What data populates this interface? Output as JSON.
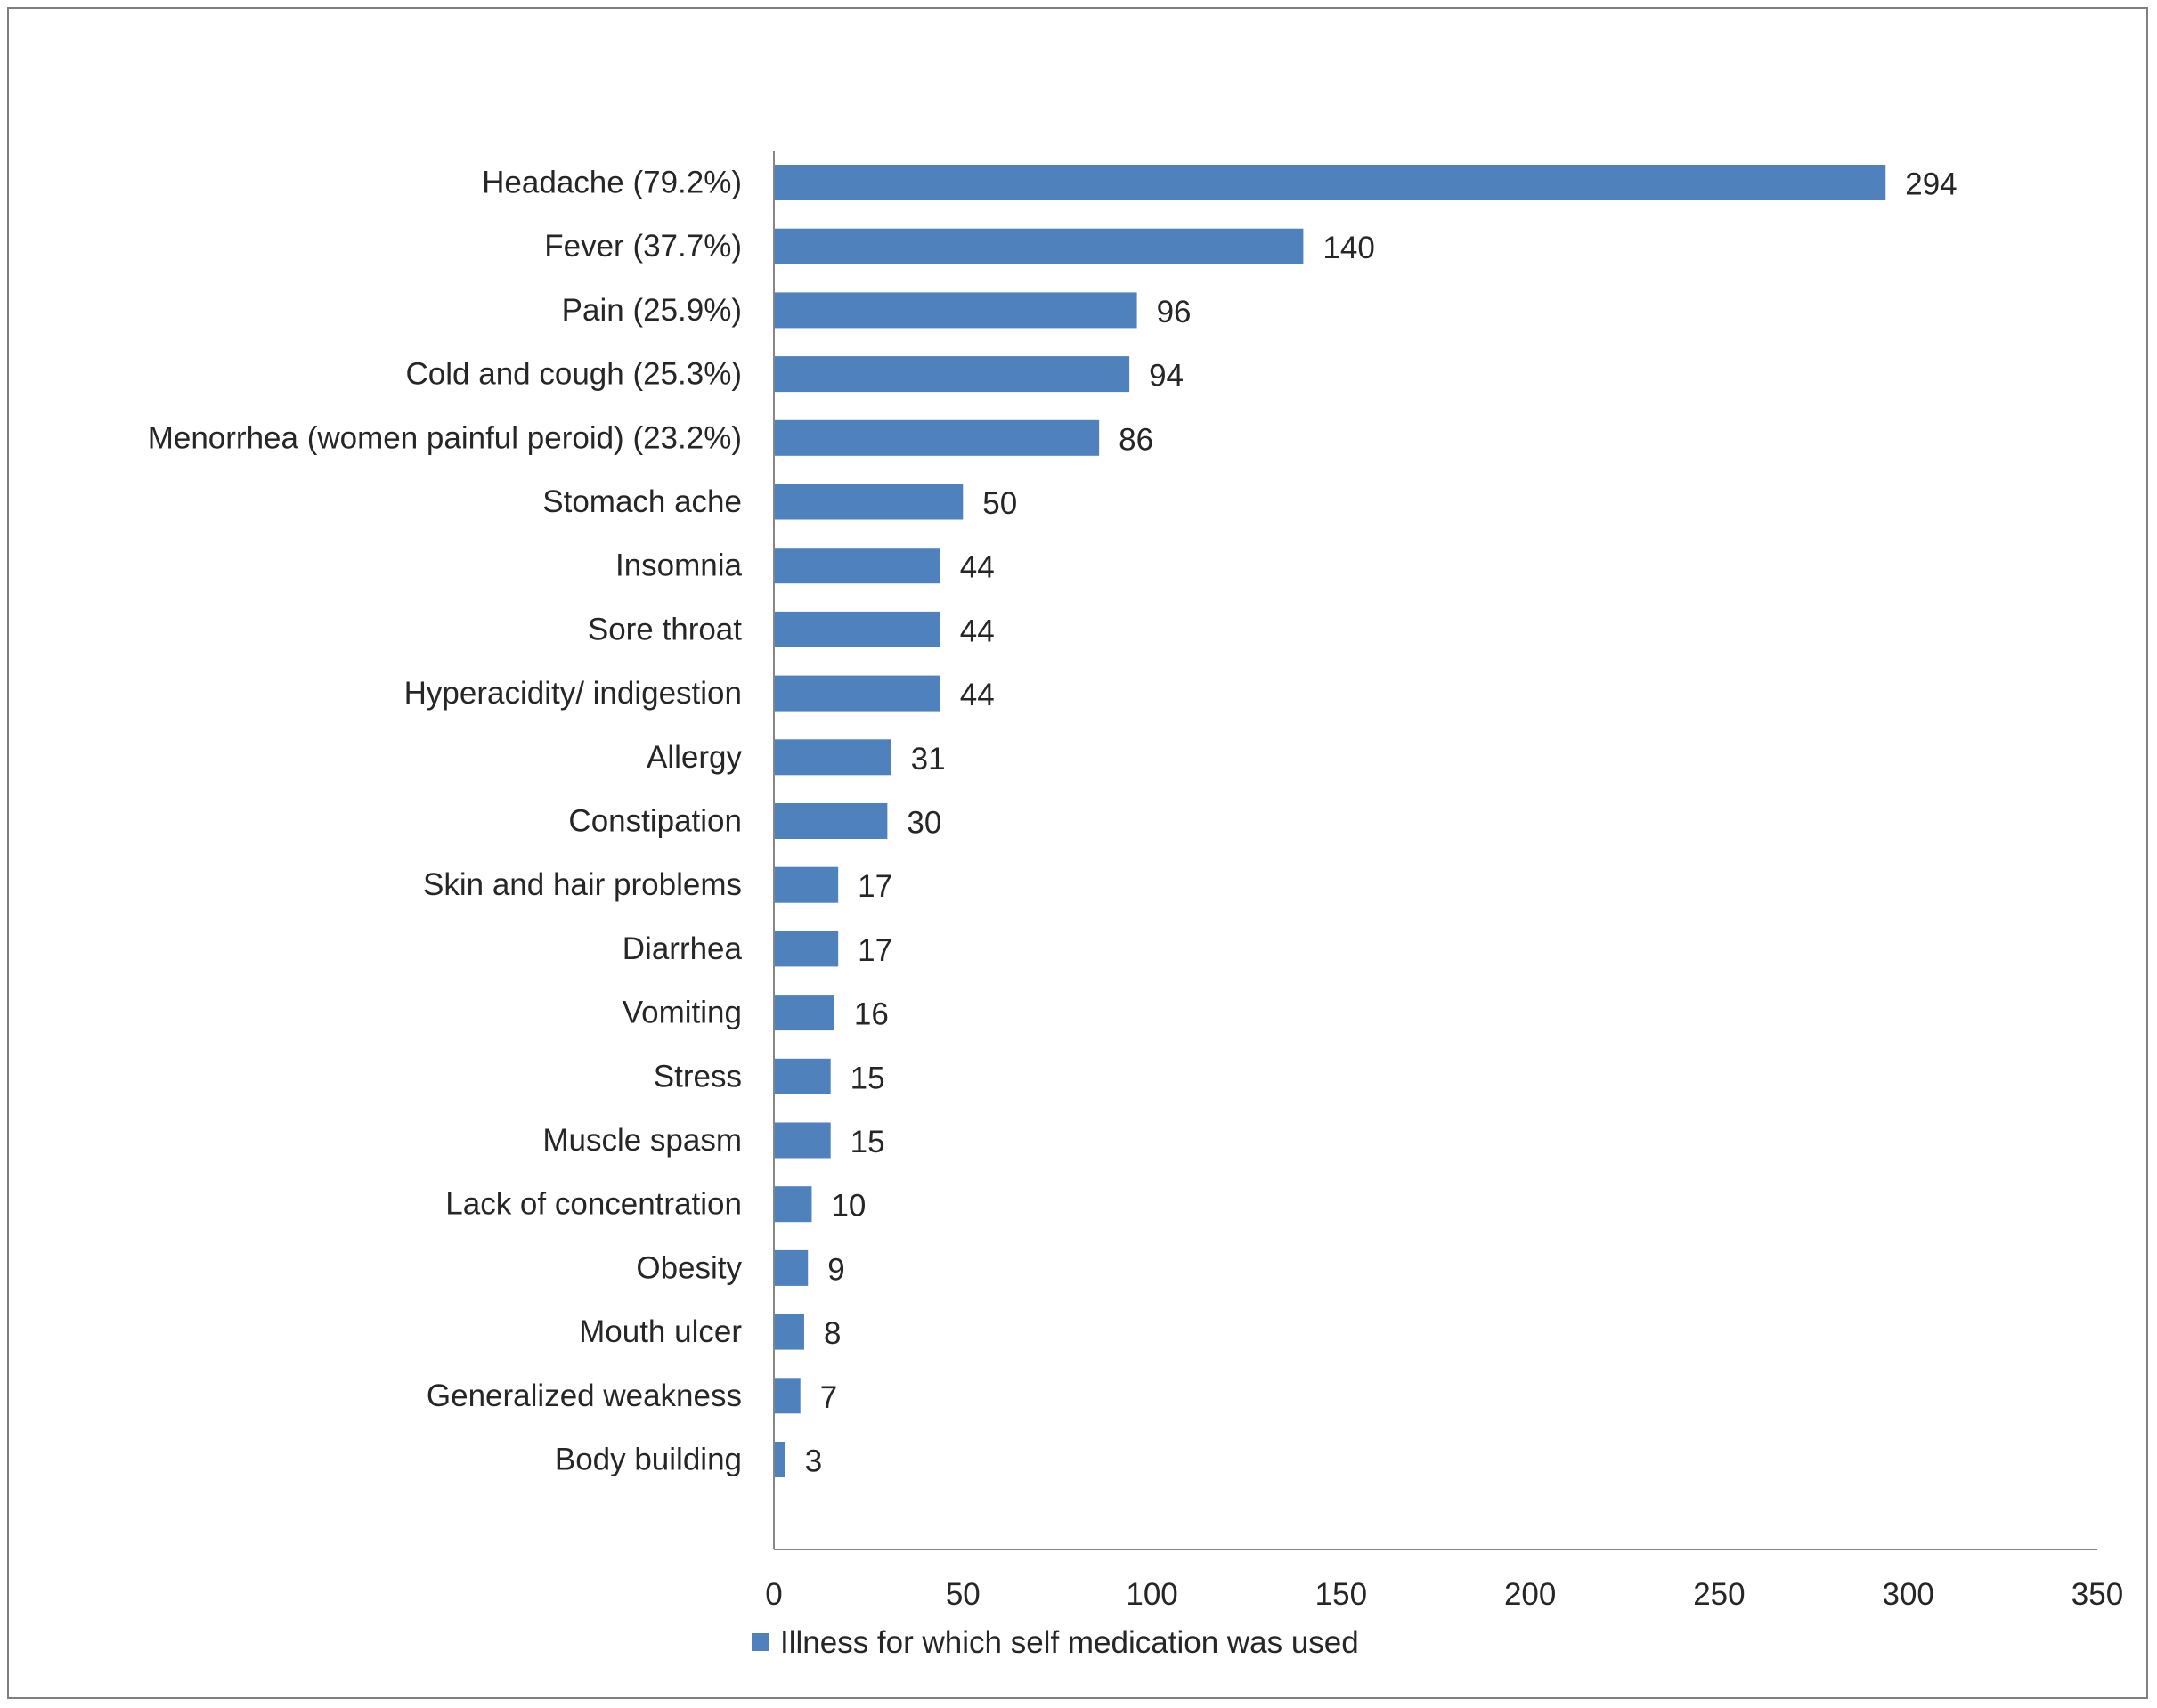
{
  "chart_data": {
    "type": "bar",
    "orientation": "horizontal",
    "title": "",
    "xlabel": "",
    "ylabel": "",
    "categories": [
      "Headache (79.2%)",
      "Fever (37.7%)",
      "Pain (25.9%)",
      "Cold and cough (25.3%)",
      "Menorrhea (women painful peroid) (23.2%)",
      "Stomach ache",
      "Insomnia",
      "Sore throat",
      "Hyperacidity/ indigestion",
      "Allergy",
      "Constipation",
      "Skin and hair problems",
      "Diarrhea",
      "Vomiting",
      "Stress",
      "Muscle spasm",
      "Lack of concentration",
      "Obesity",
      "Mouth ulcer",
      "Generalized weakness",
      "Body building"
    ],
    "series": [
      {
        "name": "Illness for which self medication was used",
        "color": "#4f81bd",
        "values": [
          294,
          140,
          96,
          94,
          86,
          50,
          44,
          44,
          44,
          31,
          30,
          17,
          17,
          16,
          15,
          15,
          10,
          9,
          8,
          7,
          3
        ]
      }
    ],
    "xlim": [
      0,
      350
    ],
    "xticks": [
      0,
      50,
      100,
      150,
      200,
      250,
      300,
      350
    ],
    "grid": false,
    "data_labels": true,
    "legend": "bottom"
  }
}
